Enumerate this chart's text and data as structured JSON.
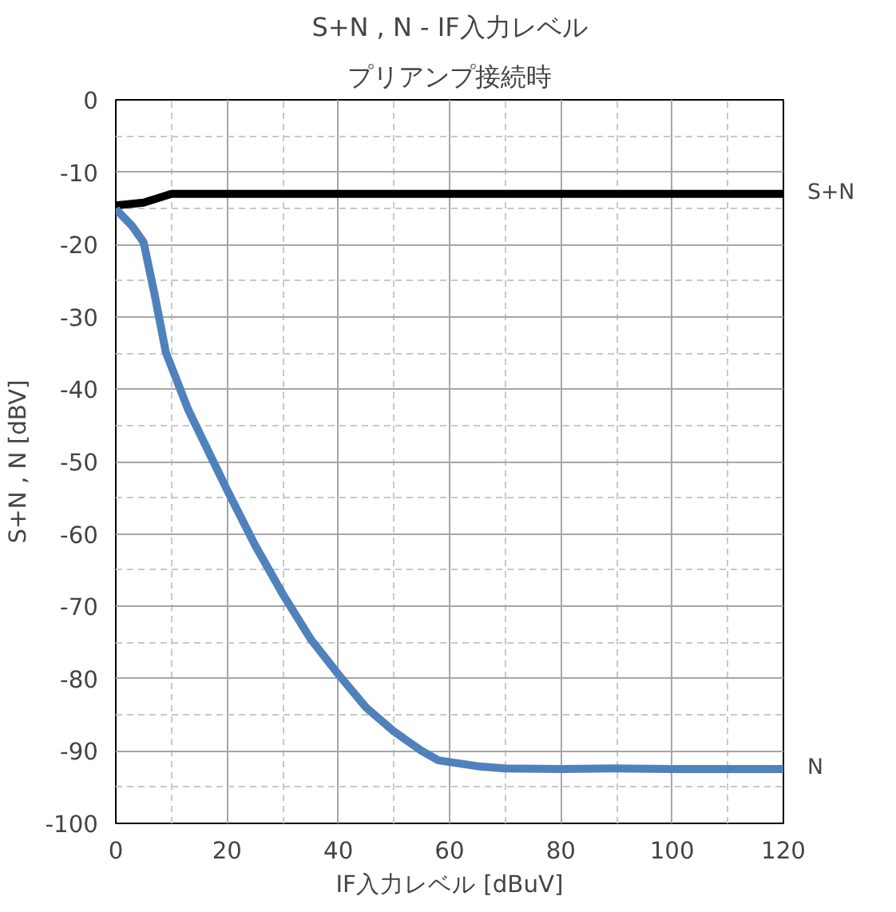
{
  "chart_data": {
    "type": "line",
    "title": "S+N , N - IF入力レベル",
    "subtitle": "プリアンプ接続時",
    "xlabel": "IF入力レベル [dBuV]",
    "ylabel": "S+N , N [dBV]",
    "xlim": [
      0,
      120
    ],
    "xticks": [
      0,
      20,
      40,
      60,
      80,
      100,
      120
    ],
    "ylim": [
      -100,
      0
    ],
    "yticks": [
      -100,
      -90,
      -80,
      -70,
      -60,
      -50,
      -40,
      -30,
      -20,
      -10,
      0
    ],
    "grid": true,
    "series": [
      {
        "name": "S+N",
        "color": "#000000",
        "x": [
          0,
          5,
          10,
          20,
          40,
          60,
          80,
          100,
          120
        ],
        "values": [
          -14.6,
          -14.2,
          -13.0,
          -13.0,
          -13.0,
          -13.0,
          -13.0,
          -13.0,
          -13.0
        ]
      },
      {
        "name": "N",
        "color": "#4f81bd",
        "x": [
          0,
          3,
          5,
          7,
          9,
          13,
          20,
          25,
          30,
          35,
          40,
          45,
          50,
          55,
          58,
          65,
          70,
          80,
          90,
          100,
          110,
          120
        ],
        "values": [
          -15.1,
          -17.5,
          -19.7,
          -27,
          -34.9,
          -42.8,
          -53.9,
          -61.5,
          -68.3,
          -74.5,
          -79.4,
          -84,
          -87.3,
          -90,
          -91.3,
          -92.1,
          -92.4,
          -92.5,
          -92.4,
          -92.5,
          -92.5,
          -92.5
        ]
      }
    ]
  }
}
